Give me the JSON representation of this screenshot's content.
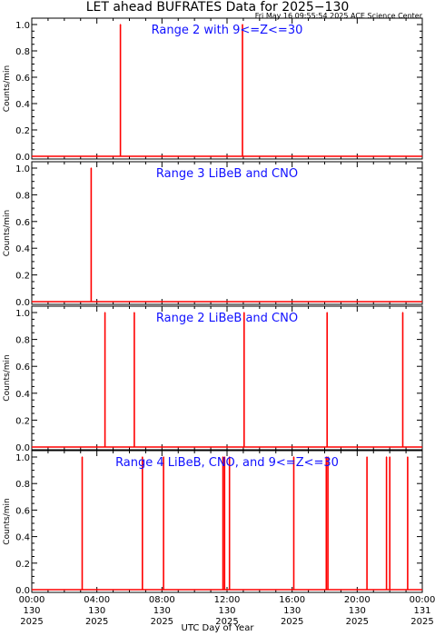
{
  "header": {
    "title": "LET ahead BUFRATES Data for 2025−130",
    "timestamp": "Fri May 16 09:55:54 2025 ACE Science Center"
  },
  "xaxis_title": "UTC Day of Year",
  "colors": {
    "series": "#ff0000",
    "panel_title": "#1010ff",
    "axis": "#000000"
  },
  "chart_data": [
    {
      "type": "line",
      "title": "Range 2 with 9<=Z<=30",
      "ylabel": "Counts/min",
      "ylim": [
        0,
        1
      ],
      "yticks": [
        "0.0",
        "0.2",
        "0.4",
        "0.6",
        "0.8",
        "1.0"
      ],
      "xlim": [
        0,
        24
      ],
      "x_unit": "hours UTC",
      "spikes": [
        5.45,
        12.95
      ]
    },
    {
      "type": "line",
      "title": "Range 3 LiBeB and CNO",
      "ylabel": "Counts/min",
      "ylim": [
        0,
        1
      ],
      "yticks": [
        "0.0",
        "0.2",
        "0.4",
        "0.6",
        "0.8",
        "1.0"
      ],
      "xlim": [
        0,
        24
      ],
      "x_unit": "hours UTC",
      "spikes": [
        3.65
      ]
    },
    {
      "type": "line",
      "title": "Range 2 LiBeB and CNO",
      "ylabel": "Counts/min",
      "ylim": [
        0,
        1
      ],
      "yticks": [
        "0.0",
        "0.2",
        "0.4",
        "0.6",
        "0.8",
        "1.0"
      ],
      "xlim": [
        0,
        24
      ],
      "x_unit": "hours UTC",
      "spikes": [
        4.5,
        6.3,
        13.05,
        18.15,
        22.8
      ]
    },
    {
      "type": "line",
      "title": "Range 4 LiBeB, CNO, and 9<=Z<=30",
      "ylabel": "Counts/min",
      "ylim": [
        0,
        1
      ],
      "yticks": [
        "0.0",
        "0.2",
        "0.4",
        "0.6",
        "0.8",
        "1.0"
      ],
      "xlim": [
        0,
        24
      ],
      "x_unit": "hours UTC",
      "spikes": [
        3.1,
        6.8,
        8.1,
        11.75,
        11.85,
        12.15,
        16.1,
        18.1,
        18.2,
        20.6,
        21.8,
        22.0,
        23.1
      ]
    }
  ],
  "xticks": [
    {
      "time": "00:00",
      "doy": "130",
      "year": "2025",
      "hour": 0
    },
    {
      "time": "04:00",
      "doy": "130",
      "year": "2025",
      "hour": 4
    },
    {
      "time": "08:00",
      "doy": "130",
      "year": "2025",
      "hour": 8
    },
    {
      "time": "12:00",
      "doy": "130",
      "year": "2025",
      "hour": 12
    },
    {
      "time": "16:00",
      "doy": "130",
      "year": "2025",
      "hour": 16
    },
    {
      "time": "20:00",
      "doy": "130",
      "year": "2025",
      "hour": 20
    },
    {
      "time": "00:00",
      "doy": "131",
      "year": "2025",
      "hour": 24
    }
  ]
}
